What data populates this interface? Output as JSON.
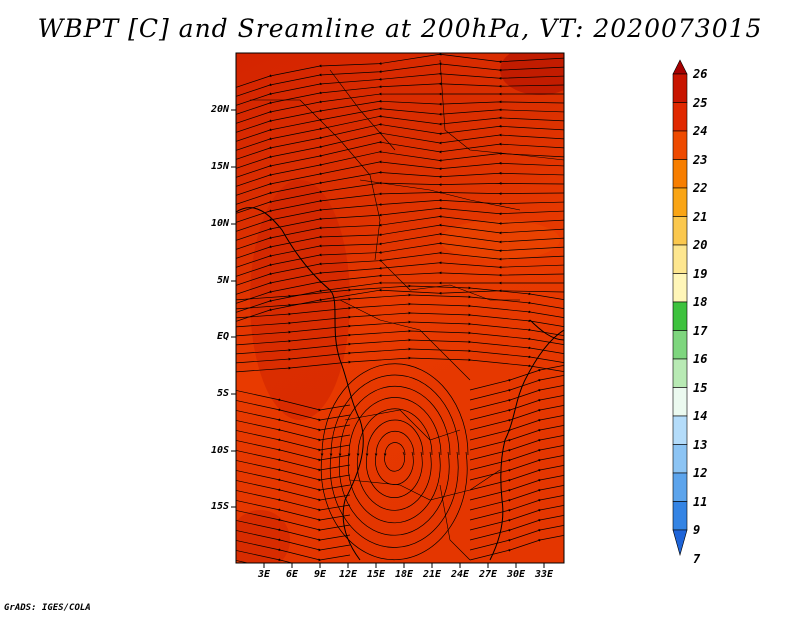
{
  "title": "WBPT [C] and Sreamline at 200hPa, VT: 2020073015",
  "credit": "GrADS: IGES/COLA",
  "lat_labels": [
    "20N",
    "15N",
    "10N",
    "5N",
    "EQ",
    "5S",
    "10S",
    "15S"
  ],
  "lon_labels": [
    "3E",
    "6E",
    "9E",
    "12E",
    "15E",
    "18E",
    "21E",
    "24E",
    "27E",
    "30E",
    "33E"
  ],
  "colorbar": {
    "labels": [
      "26",
      "25",
      "24",
      "23",
      "22",
      "21",
      "20",
      "19",
      "18",
      "17",
      "16",
      "15",
      "14",
      "13",
      "12",
      "11",
      "9",
      "7"
    ],
    "colors": [
      "#a50000",
      "#c81400",
      "#e02800",
      "#ee4a00",
      "#f77e00",
      "#f9a516",
      "#fbc84e",
      "#fde68f",
      "#fff6b8",
      "#3ec23e",
      "#7ed67e",
      "#b8eab4",
      "#ecfaf0",
      "#b4dcfa",
      "#8cc4f4",
      "#5ca4ec",
      "#3484e4",
      "#1e64d8"
    ]
  },
  "map": {
    "field": "WBPT",
    "units": "C",
    "level": "200hPa",
    "dominant_range": "23-25",
    "features": [
      "streamlines",
      "coastlines",
      "country-borders",
      "cyclonic-vortex-southern-africa"
    ]
  }
}
